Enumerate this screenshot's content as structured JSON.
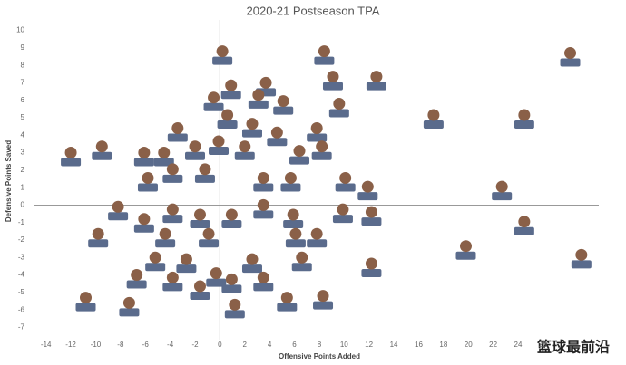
{
  "chart_data": {
    "type": "scatter",
    "title": "2020-21 Postseason TPA",
    "x_label": "Offensive Points Added",
    "y_label": "Defensive Points Saved",
    "watermark": "篮球最前沿",
    "xlim": [
      -15,
      30.5
    ],
    "ylim": [
      -7.7,
      10.6
    ],
    "xticks": [
      -14,
      -12,
      -10,
      -8,
      -6,
      -4,
      -2,
      0,
      2,
      4,
      6,
      8,
      10,
      12,
      14,
      16,
      18,
      20,
      22,
      24,
      26
    ],
    "yticks": [
      -7,
      -6,
      -5,
      -4,
      -3,
      -2,
      -1,
      0,
      1,
      2,
      3,
      4,
      5,
      6,
      7,
      8,
      9,
      10
    ],
    "color": "#5a6b8c",
    "x": [
      0.2,
      8.4,
      28.2,
      12.6,
      9.1,
      3.7,
      0.9,
      -0.5,
      3.1,
      5.1,
      9.6,
      17.2,
      24.5,
      -3.4,
      0.6,
      2.6,
      7.8,
      4.6,
      -12.0,
      -9.5,
      -6.1,
      -4.5,
      -2.0,
      -0.1,
      2.0,
      6.4,
      8.2,
      -5.8,
      -3.8,
      -1.2,
      3.5,
      5.7,
      10.1,
      11.9,
      22.7,
      -8.2,
      -6.1,
      -3.8,
      -1.6,
      0.95,
      3.5,
      5.9,
      9.9,
      12.2,
      24.5,
      -9.8,
      -4.4,
      -0.9,
      7.8,
      6.1,
      19.8,
      29.1,
      -5.2,
      -2.7,
      2.6,
      6.6,
      12.2,
      -6.7,
      -3.8,
      -0.3,
      3.5,
      -1.6,
      0.95,
      -10.8,
      -7.3,
      1.2,
      5.4,
      8.3
    ],
    "y": [
      8.65,
      8.65,
      8.55,
      7.2,
      7.2,
      6.85,
      6.7,
      6.0,
      6.15,
      5.8,
      5.65,
      5.0,
      5.0,
      4.25,
      5.0,
      4.5,
      4.25,
      4.0,
      2.85,
      3.2,
      2.85,
      2.85,
      3.2,
      3.5,
      3.2,
      2.95,
      3.2,
      1.4,
      1.9,
      1.9,
      1.4,
      1.4,
      1.4,
      0.9,
      0.9,
      -0.25,
      -0.95,
      -0.4,
      -0.7,
      -0.7,
      -0.15,
      -0.7,
      -0.4,
      -0.55,
      -1.1,
      -1.8,
      -1.8,
      -1.8,
      -1.8,
      -1.8,
      -2.5,
      -3.0,
      -3.15,
      -3.25,
      -3.25,
      -3.15,
      -3.5,
      -4.15,
      -4.3,
      -4.05,
      -4.3,
      -4.8,
      -4.4,
      -5.45,
      -5.75,
      -5.85,
      -5.45,
      -5.35
    ]
  }
}
